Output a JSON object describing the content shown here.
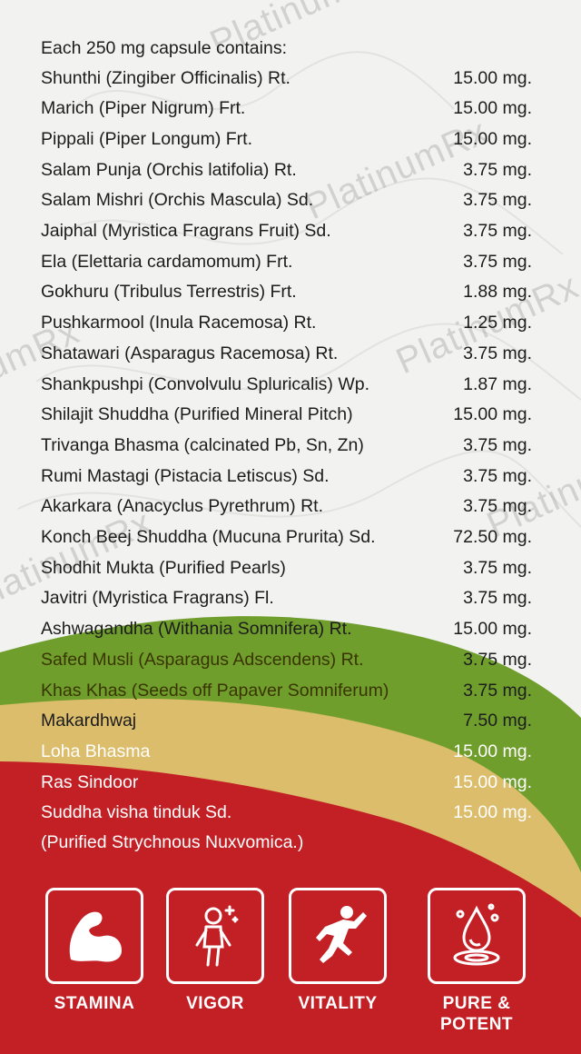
{
  "header": "Each 250 mg capsule contains:",
  "ingredients": [
    {
      "name": "Shunthi (Zingiber Officinalis) Rt.",
      "amount": "15.00 mg."
    },
    {
      "name": "Marich (Piper Nigrum) Frt.",
      "amount": "15.00 mg."
    },
    {
      "name": "Pippali (Piper Longum) Frt.",
      "amount": "15.00 mg."
    },
    {
      "name": "Salam Punja (Orchis latifolia) Rt.",
      "amount": "3.75 mg."
    },
    {
      "name": "Salam Mishri (Orchis Mascula) Sd.",
      "amount": "3.75 mg."
    },
    {
      "name": "Jaiphal (Myristica Fragrans Fruit) Sd.",
      "amount": "3.75 mg."
    },
    {
      "name": "Ela (Elettaria cardamomum) Frt.",
      "amount": "3.75 mg."
    },
    {
      "name": "Gokhuru (Tribulus Terrestris) Frt.",
      "amount": "1.88 mg."
    },
    {
      "name": "Pushkarmool (Inula Racemosa) Rt.",
      "amount": "1.25 mg."
    },
    {
      "name": "Shatawari (Asparagus Racemosa) Rt.",
      "amount": "3.75 mg."
    },
    {
      "name": "Shankpushpi (Convolvulu Spluricalis) Wp.",
      "amount": "1.87 mg."
    },
    {
      "name": "Shilajit Shuddha (Purified Mineral Pitch)",
      "amount": "15.00 mg."
    },
    {
      "name": "Trivanga Bhasma (calcinated Pb, Sn, Zn)",
      "amount": "3.75 mg."
    },
    {
      "name": "Rumi Mastagi (Pistacia Letiscus) Sd.",
      "amount": "3.75 mg."
    },
    {
      "name": "Akarkara (Anacyclus Pyrethrum) Rt.",
      "amount": "3.75 mg."
    },
    {
      "name": "Konch Beej Shuddha (Mucuna Prurita) Sd.",
      "amount": "72.50 mg."
    },
    {
      "name": "Shodhit Mukta (Purified Pearls)",
      "amount": "3.75 mg."
    },
    {
      "name": "Javitri (Myristica Fragrans) Fl.",
      "amount": "3.75 mg."
    },
    {
      "name": "Ashwagandha (Withania Somnifera) Rt.",
      "amount": "15.00 mg."
    },
    {
      "name": "Safed Musli (Asparagus Adscendens) Rt.",
      "amount": "3.75 mg."
    },
    {
      "name": "Khas Khas (Seeds off Papaver Somniferum)",
      "amount": "3.75 mg."
    },
    {
      "name": "Makardhwaj",
      "amount": "7.50 mg."
    },
    {
      "name": "Loha Bhasma",
      "amount": "15.00 mg."
    },
    {
      "name": "Ras Sindoor",
      "amount": "15.00 mg."
    },
    {
      "name": "Suddha visha tinduk  Sd.",
      "amount": "15.00 mg."
    }
  ],
  "note": "(Purified Strychnous Nuxvomica.)",
  "watermark": "PlatinumRx",
  "badges": [
    {
      "label": "STAMINA",
      "icon": "muscle-arm-icon"
    },
    {
      "label": "VIGOR",
      "icon": "energized-person-icon"
    },
    {
      "label": "VITALITY",
      "icon": "jumping-person-icon"
    },
    {
      "label": "PURE & POTENT",
      "icon": "water-drop-icon"
    }
  ],
  "colors": {
    "background": "#f2f2f0",
    "green_band": "#6f9e2c",
    "tan_band": "#dcbd6c",
    "red_band": "#c32026",
    "text": "#1c1c1c"
  }
}
